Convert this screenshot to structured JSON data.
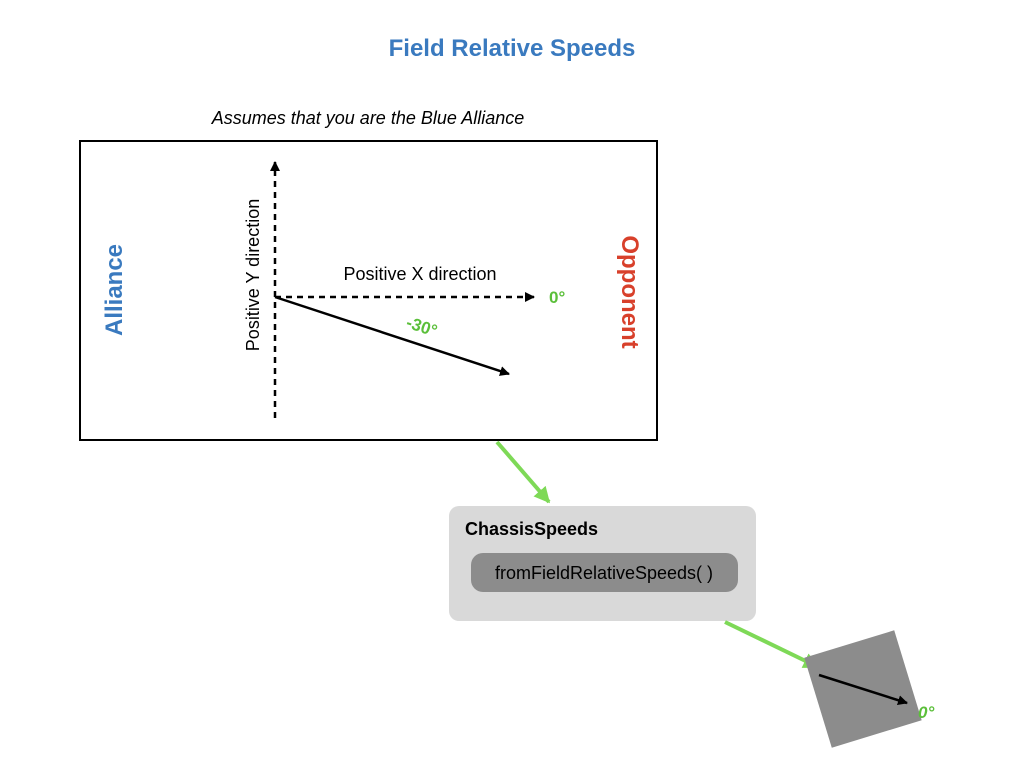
{
  "title": "Field Relative Speeds",
  "subtitle": "Assumes that you are the Blue Alliance",
  "field": {
    "alliance_label": "Alliance",
    "opponent_label": "Opponent",
    "x_axis_label": "Positive X direction",
    "y_axis_label": "Positive Y direction",
    "zero_angle_label": "0°",
    "vector_angle_label": "-30°"
  },
  "chassis_speeds": {
    "class_name": "ChassisSpeeds",
    "method_label": "fromFieldRelativeSpeeds( )"
  },
  "robot": {
    "heading_label": "0°"
  },
  "colors": {
    "title": "#3a7abf",
    "alliance": "#3a7abf",
    "opponent": "#d8402b",
    "angle_labels": "#5bbf3a",
    "flow_arrows": "#7ed957",
    "chassis_box": "#d9d9d9",
    "method_pill": "#8c8c8c",
    "robot_body": "#8c8c8c",
    "field_border": "#000000"
  }
}
